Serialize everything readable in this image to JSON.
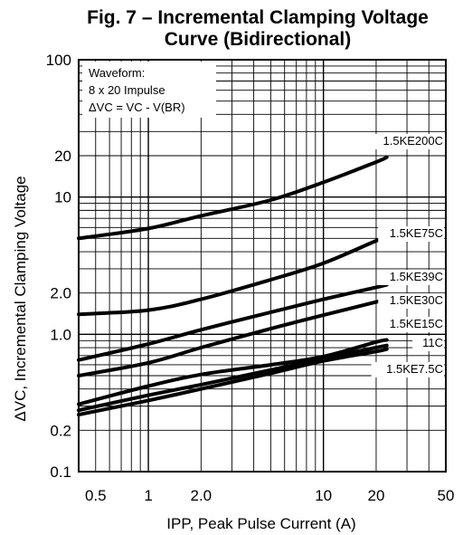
{
  "chart_data": {
    "type": "line",
    "title_line1": "Fig. 7 – Incremental Clamping Voltage",
    "title_line2": "Curve (Bidirectional)",
    "xlabel": "IPP, Peak Pulse Current (A)",
    "ylabel": "ΔVC, Incremental Clamping Voltage",
    "xscale": "log",
    "yscale": "log",
    "xlim": [
      0.4,
      50
    ],
    "ylim": [
      0.1,
      100
    ],
    "x_ticks": [
      0.5,
      1,
      2.0,
      10,
      20,
      50
    ],
    "x_tick_labels": [
      "0.5",
      "1",
      "2.0",
      "10",
      "20",
      "50"
    ],
    "y_ticks": [
      0.1,
      0.2,
      1.0,
      2.0,
      10,
      20,
      100
    ],
    "y_tick_labels": [
      "0.1",
      "0.2",
      "1.0",
      "2.0",
      "10",
      "20",
      "100"
    ],
    "grid": true,
    "annotation": {
      "line1": "Waveform:",
      "line2": "8 x 20 Impulse",
      "line3": "ΔVC = VC - V(BR)"
    },
    "series": [
      {
        "name": "1.5KE200C",
        "x": [
          0.4,
          1,
          2,
          5,
          10,
          20,
          23
        ],
        "y": [
          5.0,
          5.9,
          7.3,
          9.5,
          12.8,
          18.0,
          19.5
        ]
      },
      {
        "name": "1.5KE75C",
        "x": [
          0.4,
          1,
          2,
          5,
          10,
          20,
          23
        ],
        "y": [
          1.4,
          1.5,
          1.8,
          2.5,
          3.3,
          4.8,
          5.1
        ]
      },
      {
        "name": "1.5KE39C",
        "x": [
          0.4,
          1,
          2,
          5,
          10,
          20,
          23
        ],
        "y": [
          0.65,
          0.85,
          1.08,
          1.45,
          1.8,
          2.2,
          2.3
        ]
      },
      {
        "name": "1.5KE30C",
        "x": [
          0.4,
          1,
          2,
          5,
          10,
          20,
          23
        ],
        "y": [
          0.5,
          0.62,
          0.8,
          1.1,
          1.38,
          1.72,
          1.8
        ]
      },
      {
        "name": "1.5KE15C",
        "x": [
          0.4,
          1,
          2,
          5,
          10,
          20,
          23
        ],
        "y": [
          0.31,
          0.42,
          0.51,
          0.6,
          0.69,
          0.88,
          0.91
        ]
      },
      {
        "name": "11C",
        "x": [
          0.4,
          1,
          2,
          5,
          10,
          20,
          23
        ],
        "y": [
          0.28,
          0.36,
          0.43,
          0.55,
          0.67,
          0.8,
          0.83
        ]
      },
      {
        "name": "1.5KE7.5C",
        "x": [
          0.4,
          1,
          2,
          5,
          10,
          20,
          23
        ],
        "y": [
          0.26,
          0.33,
          0.4,
          0.52,
          0.64,
          0.75,
          0.78
        ]
      }
    ]
  }
}
